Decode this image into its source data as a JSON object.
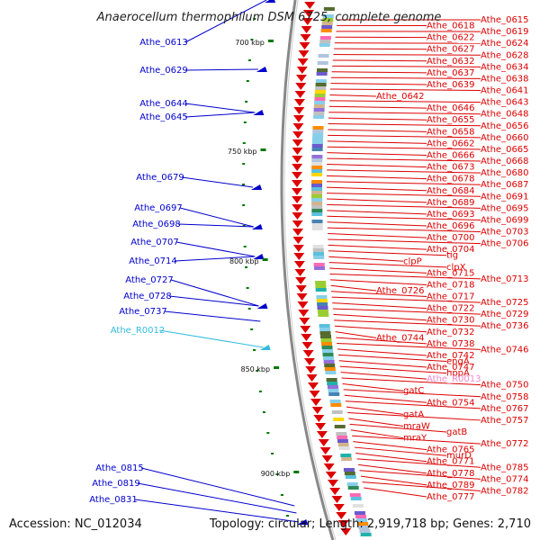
{
  "title": "Anaerocellum thermophilum DSM 6725, complete genome",
  "footer": {
    "accession": "Accession: NC_012034",
    "summary": "Topology: circular; Length: 2,919,718 bp; Genes: 2,710"
  },
  "colors": {
    "reverse_strand": "#0000cc",
    "forward_strand": "#dd0000",
    "rna": "#33bbdd",
    "pseudo": "#ee88cc",
    "backbone": "#888888",
    "tick": "#007700"
  },
  "kbp_labels": [
    "700 kbp",
    "750 kbp",
    "800 kbp",
    "850 kbp",
    "900 kbp"
  ],
  "left_labels": [
    {
      "text": "Athe_0613",
      "kind": "gene"
    },
    {
      "text": "Athe_0629",
      "kind": "gene"
    },
    {
      "text": "Athe_0644",
      "kind": "gene"
    },
    {
      "text": "Athe_0645",
      "kind": "gene"
    },
    {
      "text": "Athe_0679",
      "kind": "gene"
    },
    {
      "text": "Athe_0697",
      "kind": "gene"
    },
    {
      "text": "Athe_0698",
      "kind": "gene"
    },
    {
      "text": "Athe_0707",
      "kind": "gene"
    },
    {
      "text": "Athe_0714",
      "kind": "gene"
    },
    {
      "text": "Athe_0727",
      "kind": "gene"
    },
    {
      "text": "Athe_0728",
      "kind": "gene"
    },
    {
      "text": "Athe_0737",
      "kind": "gene"
    },
    {
      "text": "Athe_R0012",
      "kind": "rna"
    },
    {
      "text": "Athe_0815",
      "kind": "gene"
    },
    {
      "text": "Athe_0819",
      "kind": "gene"
    },
    {
      "text": "Athe_0831",
      "kind": "gene"
    }
  ],
  "right_labels": [
    {
      "text": "Athe_0615",
      "kind": "gene"
    },
    {
      "text": "Athe_0618",
      "kind": "gene"
    },
    {
      "text": "Athe_0619",
      "kind": "gene"
    },
    {
      "text": "Athe_0622",
      "kind": "gene"
    },
    {
      "text": "Athe_0624",
      "kind": "gene"
    },
    {
      "text": "Athe_0627",
      "kind": "gene"
    },
    {
      "text": "Athe_0628",
      "kind": "gene"
    },
    {
      "text": "Athe_0632",
      "kind": "gene"
    },
    {
      "text": "Athe_0634",
      "kind": "gene"
    },
    {
      "text": "Athe_0637",
      "kind": "gene"
    },
    {
      "text": "Athe_0638",
      "kind": "gene"
    },
    {
      "text": "Athe_0639",
      "kind": "gene"
    },
    {
      "text": "Athe_0641",
      "kind": "gene"
    },
    {
      "text": "Athe_0642",
      "kind": "gene"
    },
    {
      "text": "Athe_0643",
      "kind": "gene"
    },
    {
      "text": "Athe_0646",
      "kind": "gene"
    },
    {
      "text": "Athe_0648",
      "kind": "gene"
    },
    {
      "text": "Athe_0655",
      "kind": "gene"
    },
    {
      "text": "Athe_0656",
      "kind": "gene"
    },
    {
      "text": "Athe_0658",
      "kind": "gene"
    },
    {
      "text": "Athe_0660",
      "kind": "gene"
    },
    {
      "text": "Athe_0662",
      "kind": "gene"
    },
    {
      "text": "Athe_0665",
      "kind": "gene"
    },
    {
      "text": "Athe_0666",
      "kind": "gene"
    },
    {
      "text": "Athe_0668",
      "kind": "gene"
    },
    {
      "text": "Athe_0673",
      "kind": "gene"
    },
    {
      "text": "Athe_0680",
      "kind": "gene"
    },
    {
      "text": "Athe_0678",
      "kind": "gene"
    },
    {
      "text": "Athe_0687",
      "kind": "gene"
    },
    {
      "text": "Athe_0684",
      "kind": "gene"
    },
    {
      "text": "Athe_0691",
      "kind": "gene"
    },
    {
      "text": "Athe_0689",
      "kind": "gene"
    },
    {
      "text": "Athe_0695",
      "kind": "gene"
    },
    {
      "text": "Athe_0693",
      "kind": "gene"
    },
    {
      "text": "Athe_0699",
      "kind": "gene"
    },
    {
      "text": "Athe_0696",
      "kind": "gene"
    },
    {
      "text": "Athe_0703",
      "kind": "gene"
    },
    {
      "text": "Athe_0700",
      "kind": "gene"
    },
    {
      "text": "Athe_0706",
      "kind": "gene"
    },
    {
      "text": "Athe_0704",
      "kind": "gene"
    },
    {
      "text": "tig",
      "kind": "gene"
    },
    {
      "text": "clpP",
      "kind": "gene"
    },
    {
      "text": "clpX",
      "kind": "gene"
    },
    {
      "text": "Athe_0715",
      "kind": "gene"
    },
    {
      "text": "Athe_0713",
      "kind": "gene"
    },
    {
      "text": "Athe_0718",
      "kind": "gene"
    },
    {
      "text": "Athe_0726",
      "kind": "gene"
    },
    {
      "text": "Athe_0717",
      "kind": "gene"
    },
    {
      "text": "Athe_0725",
      "kind": "gene"
    },
    {
      "text": "Athe_0722",
      "kind": "gene"
    },
    {
      "text": "Athe_0729",
      "kind": "gene"
    },
    {
      "text": "Athe_0730",
      "kind": "gene"
    },
    {
      "text": "Athe_0736",
      "kind": "gene"
    },
    {
      "text": "Athe_0732",
      "kind": "gene"
    },
    {
      "text": "Athe_0744",
      "kind": "gene"
    },
    {
      "text": "Athe_0738",
      "kind": "gene"
    },
    {
      "text": "Athe_0746",
      "kind": "gene"
    },
    {
      "text": "Athe_0742",
      "kind": "gene"
    },
    {
      "text": "engA",
      "kind": "gene"
    },
    {
      "text": "Athe_0747",
      "kind": "gene"
    },
    {
      "text": "hppA",
      "kind": "gene"
    },
    {
      "text": "Athe_R0013",
      "kind": "pseudo"
    },
    {
      "text": "Athe_0750",
      "kind": "gene"
    },
    {
      "text": "gatC",
      "kind": "gene"
    },
    {
      "text": "Athe_0758",
      "kind": "gene"
    },
    {
      "text": "Athe_0754",
      "kind": "gene"
    },
    {
      "text": "Athe_0767",
      "kind": "gene"
    },
    {
      "text": "gatA",
      "kind": "gene"
    },
    {
      "text": "Athe_0757",
      "kind": "gene"
    },
    {
      "text": "mraW",
      "kind": "gene"
    },
    {
      "text": "gatB",
      "kind": "gene"
    },
    {
      "text": "mraY",
      "kind": "gene"
    },
    {
      "text": "Athe_0772",
      "kind": "gene"
    },
    {
      "text": "Athe_0765",
      "kind": "gene"
    },
    {
      "text": "murD",
      "kind": "gene"
    },
    {
      "text": "Athe_0771",
      "kind": "gene"
    },
    {
      "text": "Athe_0785",
      "kind": "gene"
    },
    {
      "text": "Athe_0778",
      "kind": "gene"
    },
    {
      "text": "Athe_0774",
      "kind": "gene"
    },
    {
      "text": "Athe_0789",
      "kind": "gene"
    },
    {
      "text": "Athe_0782",
      "kind": "gene"
    },
    {
      "text": "Athe_0777",
      "kind": "gene"
    }
  ]
}
